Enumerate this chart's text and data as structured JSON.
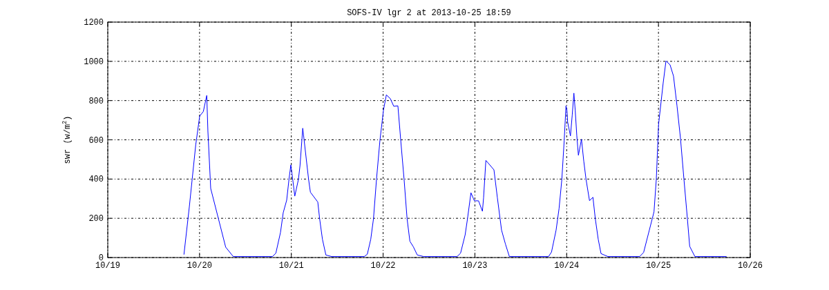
{
  "chart_data": {
    "type": "line",
    "title": "SOFS-IV lgr 2 at 2013-10-25 18:59",
    "ylabel": "swr (w/m$^{2}$)",
    "xlim": [
      "2013-10-19",
      "2013-10-26"
    ],
    "xticks": [
      {
        "value": "2013-10-19",
        "label": "10/19"
      },
      {
        "value": "2013-10-20",
        "label": "10/20"
      },
      {
        "value": "2013-10-21",
        "label": "10/21"
      },
      {
        "value": "2013-10-22",
        "label": "10/22"
      },
      {
        "value": "2013-10-23",
        "label": "10/23"
      },
      {
        "value": "2013-10-24",
        "label": "10/24"
      },
      {
        "value": "2013-10-25",
        "label": "10/25"
      },
      {
        "value": "2013-10-26",
        "label": "10/26"
      }
    ],
    "ylim": [
      0,
      1200
    ],
    "yticks": [
      0,
      200,
      400,
      600,
      800,
      1000,
      1200
    ],
    "grid": true,
    "marker": "none",
    "line_style": "solid",
    "series": [
      {
        "color": "#0000ff",
        "x": [
          "2013-10-19T19:55",
          "2013-10-19T21:19",
          "2013-10-19T23:00",
          "2013-10-20T00:02",
          "2013-10-20T00:59",
          "2013-10-20T01:53",
          "2013-10-20T02:11",
          "2013-10-20T02:55",
          "2013-10-20T06:50",
          "2013-10-20T08:49",
          "2013-10-20T19:03",
          "2013-10-20T19:57",
          "2013-10-20T21:10",
          "2013-10-20T21:53",
          "2013-10-20T22:47",
          "2013-10-20T23:23",
          "2013-10-20T23:52",
          "2013-10-21T00:11",
          "2013-10-21T00:54",
          "2013-10-21T01:51",
          "2013-10-21T02:16",
          "2013-10-21T02:59",
          "2013-10-21T03:11",
          "2013-10-21T03:54",
          "2013-10-21T04:31",
          "2013-10-21T04:59",
          "2013-10-21T06:55",
          "2013-10-21T07:24",
          "2013-10-21T08:08",
          "2013-10-21T09:02",
          "2013-10-21T10:32",
          "2013-10-21T19:04",
          "2013-10-21T19:52",
          "2013-10-21T20:46",
          "2013-10-21T21:29",
          "2013-10-21T22:16",
          "2013-10-21T23:10",
          "2013-10-22T00:05",
          "2013-10-22T00:51",
          "2013-10-22T01:53",
          "2013-10-22T02:47",
          "2013-10-22T03:52",
          "2013-10-22T04:35",
          "2013-10-22T05:29",
          "2013-10-22T06:16",
          "2013-10-22T07:00",
          "2013-10-22T07:54",
          "2013-10-22T08:56",
          "2013-10-22T10:37",
          "2013-10-22T19:21",
          "2013-10-22T20:15",
          "2013-10-22T21:27",
          "2013-10-22T22:04",
          "2013-10-22T22:58",
          "2013-10-22T23:52",
          "2013-10-23T00:57",
          "2013-10-23T01:58",
          "2013-10-23T02:16",
          "2013-10-23T02:52",
          "2013-10-23T04:04",
          "2013-10-23T04:59",
          "2013-10-23T05:53",
          "2013-10-23T06:58",
          "2013-10-23T07:59",
          "2013-10-23T09:01",
          "2013-10-23T19:15",
          "2013-10-23T20:02",
          "2013-10-23T21:14",
          "2013-10-23T22:01",
          "2013-10-23T22:44",
          "2013-10-23T23:21",
          "2013-10-23T23:49",
          "2013-10-24T00:04",
          "2013-10-24T00:15",
          "2013-10-24T00:59",
          "2013-10-24T01:27",
          "2013-10-24T01:53",
          "2013-10-24T02:14",
          "2013-10-24T02:39",
          "2013-10-24T03:04",
          "2013-10-24T03:52",
          "2013-10-24T04:28",
          "2013-10-24T05:04",
          "2013-10-24T05:58",
          "2013-10-24T06:52",
          "2013-10-24T07:29",
          "2013-10-24T08:15",
          "2013-10-24T08:59",
          "2013-10-24T10:47",
          "2013-10-24T19:05",
          "2013-10-24T20:07",
          "2013-10-24T21:37",
          "2013-10-24T22:50",
          "2013-10-24T23:26",
          "2013-10-25T00:02",
          "2013-10-25T01:14",
          "2013-10-25T01:58",
          "2013-10-25T03:02",
          "2013-10-25T03:56",
          "2013-10-25T04:51",
          "2013-10-25T05:45",
          "2013-10-25T06:40",
          "2013-10-25T07:34",
          "2013-10-25T08:10",
          "2013-10-25T09:32",
          "2013-10-25T17:48"
        ],
        "values": [
          15,
          257,
          574,
          721,
          744,
          826,
          644,
          352,
          53,
          5,
          5,
          22,
          128,
          229,
          292,
          398,
          472,
          427,
          313,
          398,
          468,
          659,
          626,
          503,
          398,
          333,
          283,
          198,
          93,
          13,
          5,
          5,
          17,
          93,
          198,
          398,
          597,
          750,
          829,
          810,
          771,
          773,
          603,
          398,
          198,
          83,
          55,
          13,
          5,
          5,
          22,
          116,
          198,
          330,
          289,
          289,
          236,
          304,
          495,
          468,
          447,
          304,
          140,
          69,
          5,
          5,
          28,
          140,
          251,
          398,
          597,
          773,
          750,
          691,
          620,
          726,
          838,
          750,
          620,
          521,
          603,
          492,
          398,
          290,
          307,
          198,
          93,
          20,
          5,
          5,
          26,
          140,
          233,
          398,
          679,
          890,
          1002,
          982,
          925,
          773,
          609,
          398,
          198,
          57,
          5,
          5
        ]
      }
    ]
  }
}
